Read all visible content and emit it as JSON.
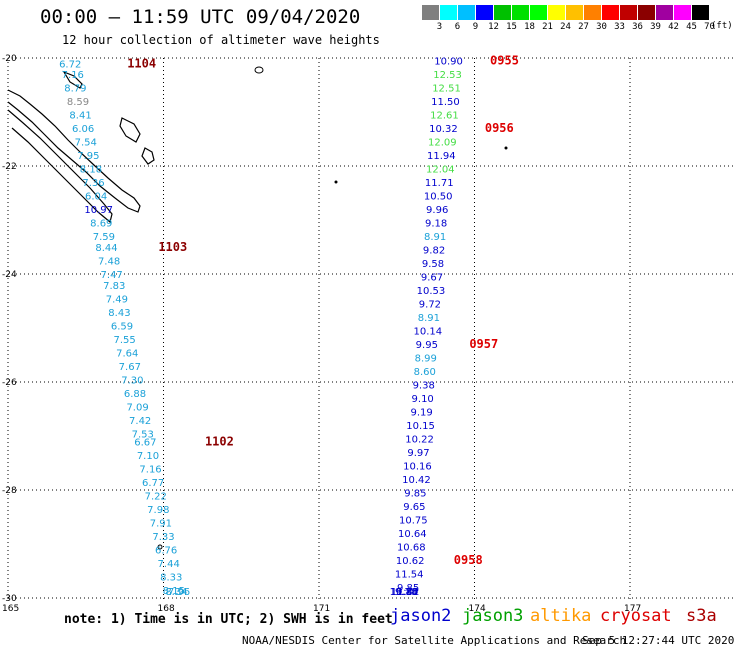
{
  "header": {
    "title": "00:00 – 11:59 UTC 09/04/2020",
    "subtitle": "12 hour collection of altimeter wave heights"
  },
  "legend": {
    "bins": [
      {
        "label": "3",
        "color": "#7f7f7f"
      },
      {
        "label": "6",
        "color": "#00ffff"
      },
      {
        "label": "9",
        "color": "#00bfff"
      },
      {
        "label": "12",
        "color": "#0000ff"
      },
      {
        "label": "15",
        "color": "#00c000"
      },
      {
        "label": "18",
        "color": "#00e000"
      },
      {
        "label": "21",
        "color": "#00ff00"
      },
      {
        "label": "24",
        "color": "#ffff00"
      },
      {
        "label": "27",
        "color": "#ffc000"
      },
      {
        "label": "30",
        "color": "#ff8000"
      },
      {
        "label": "33",
        "color": "#ff0000"
      },
      {
        "label": "36",
        "color": "#c00000"
      },
      {
        "label": "39",
        "color": "#8b0000"
      },
      {
        "label": "42",
        "color": "#a000a0"
      },
      {
        "label": "45",
        "color": "#ff00ff"
      },
      {
        "label": "70",
        "color": "#000000"
      }
    ],
    "unit": "(ft)"
  },
  "axes": {
    "lat_labels": [
      "-20",
      "-22",
      "-24",
      "-26",
      "-28",
      "-30"
    ],
    "lon_labels": [
      "165",
      "168",
      "171",
      "174",
      "177"
    ]
  },
  "tracks": [
    {
      "name": "west-track",
      "color": "#1ba1d8",
      "points": [
        {
          "lat": -20.1,
          "lon": 166.2,
          "v": "6.72"
        },
        {
          "lat": -20.3,
          "lon": 166.25,
          "v": "7.16"
        },
        {
          "lat": -20.55,
          "lon": 166.3,
          "v": "8.79"
        },
        {
          "lat": -20.8,
          "lon": 166.35,
          "v": "8.59",
          "color": "#888888"
        },
        {
          "lat": -21.05,
          "lon": 166.4,
          "v": "8.41"
        },
        {
          "lat": -21.3,
          "lon": 166.45,
          "v": "6.06"
        },
        {
          "lat": -21.55,
          "lon": 166.5,
          "v": "7.54"
        },
        {
          "lat": -21.8,
          "lon": 166.55,
          "v": "7.95"
        },
        {
          "lat": -22.05,
          "lon": 166.6,
          "v": "8.18"
        },
        {
          "lat": -22.3,
          "lon": 166.65,
          "v": "7.36"
        },
        {
          "lat": -22.55,
          "lon": 166.7,
          "v": "6.04"
        },
        {
          "lat": -22.8,
          "lon": 166.75,
          "v": "10.97",
          "color": "#0000cc"
        },
        {
          "lat": -23.05,
          "lon": 166.8,
          "v": "8.69"
        },
        {
          "lat": -23.3,
          "lon": 166.85,
          "v": "7.59"
        },
        {
          "lat": -23.5,
          "lon": 166.9,
          "v": "8.44"
        },
        {
          "lat": -23.75,
          "lon": 166.95,
          "v": "7.48"
        },
        {
          "lat": -24.0,
          "lon": 167.0,
          "v": "7.47"
        },
        {
          "lat": -24.2,
          "lon": 167.05,
          "v": "7.83"
        },
        {
          "lat": -24.45,
          "lon": 167.1,
          "v": "7.49"
        },
        {
          "lat": -24.7,
          "lon": 167.15,
          "v": "8.43"
        },
        {
          "lat": -24.95,
          "lon": 167.2,
          "v": "6.59"
        },
        {
          "lat": -25.2,
          "lon": 167.25,
          "v": "7.55"
        },
        {
          "lat": -25.45,
          "lon": 167.3,
          "v": "7.64"
        },
        {
          "lat": -25.7,
          "lon": 167.35,
          "v": "7.67"
        },
        {
          "lat": -25.95,
          "lon": 167.4,
          "v": "7.30"
        },
        {
          "lat": -26.2,
          "lon": 167.45,
          "v": "6.88"
        },
        {
          "lat": -26.45,
          "lon": 167.5,
          "v": "7.09"
        },
        {
          "lat": -26.7,
          "lon": 167.55,
          "v": "7.42"
        },
        {
          "lat": -26.95,
          "lon": 167.6,
          "v": "7.53"
        },
        {
          "lat": -27.1,
          "lon": 167.65,
          "v": "6.67"
        },
        {
          "lat": -27.35,
          "lon": 167.7,
          "v": "7.10"
        },
        {
          "lat": -27.6,
          "lon": 167.75,
          "v": "7.16"
        },
        {
          "lat": -27.85,
          "lon": 167.8,
          "v": "6.77"
        },
        {
          "lat": -28.1,
          "lon": 167.85,
          "v": "7.22"
        },
        {
          "lat": -28.35,
          "lon": 167.9,
          "v": "7.98"
        },
        {
          "lat": -28.6,
          "lon": 167.95,
          "v": "7.91"
        },
        {
          "lat": -28.85,
          "lon": 168.0,
          "v": "7.33"
        },
        {
          "lat": -29.1,
          "lon": 168.05,
          "v": "6.76"
        },
        {
          "lat": -29.35,
          "lon": 168.1,
          "v": "7.44"
        },
        {
          "lat": -29.6,
          "lon": 168.15,
          "v": "8.33"
        },
        {
          "lat": -29.85,
          "lon": 168.2,
          "v": "8.15"
        },
        {
          "lat": -30.1,
          "lon": 168.25,
          "v": "8.34"
        },
        {
          "lat": -30.35,
          "lon": 168.3,
          "v": "7.96"
        }
      ]
    },
    {
      "name": "east-track",
      "color": "#0000cc",
      "points": [
        {
          "lat": -20.05,
          "lon": 173.5,
          "v": "10.90"
        },
        {
          "lat": -20.3,
          "lon": 173.48,
          "v": "12.53",
          "color": "#44dd44"
        },
        {
          "lat": -20.55,
          "lon": 173.46,
          "v": "12.51",
          "color": "#44dd44"
        },
        {
          "lat": -20.8,
          "lon": 173.44,
          "v": "11.50"
        },
        {
          "lat": -21.05,
          "lon": 173.42,
          "v": "12.61",
          "color": "#44dd44"
        },
        {
          "lat": -21.3,
          "lon": 173.4,
          "v": "10.32"
        },
        {
          "lat": -21.55,
          "lon": 173.38,
          "v": "12.09",
          "color": "#44dd44"
        },
        {
          "lat": -21.8,
          "lon": 173.36,
          "v": "11.94"
        },
        {
          "lat": -22.05,
          "lon": 173.34,
          "v": "12.04",
          "color": "#44dd44"
        },
        {
          "lat": -22.3,
          "lon": 173.32,
          "v": "11.71"
        },
        {
          "lat": -22.55,
          "lon": 173.3,
          "v": "10.50"
        },
        {
          "lat": -22.8,
          "lon": 173.28,
          "v": "9.96"
        },
        {
          "lat": -23.05,
          "lon": 173.26,
          "v": "9.18"
        },
        {
          "lat": -23.3,
          "lon": 173.24,
          "v": "8.91",
          "color": "#1ba1d8"
        },
        {
          "lat": -23.55,
          "lon": 173.22,
          "v": "9.82"
        },
        {
          "lat": -23.8,
          "lon": 173.2,
          "v": "9.58"
        },
        {
          "lat": -24.05,
          "lon": 173.18,
          "v": "9.67"
        },
        {
          "lat": -24.3,
          "lon": 173.16,
          "v": "10.53"
        },
        {
          "lat": -24.55,
          "lon": 173.14,
          "v": "9.72"
        },
        {
          "lat": -24.8,
          "lon": 173.12,
          "v": "8.91",
          "color": "#1ba1d8"
        },
        {
          "lat": -25.05,
          "lon": 173.1,
          "v": "10.14"
        },
        {
          "lat": -25.3,
          "lon": 173.08,
          "v": "9.95"
        },
        {
          "lat": -25.55,
          "lon": 173.06,
          "v": "8.99",
          "color": "#1ba1d8"
        },
        {
          "lat": -25.8,
          "lon": 173.04,
          "v": "8.60",
          "color": "#1ba1d8"
        },
        {
          "lat": -26.05,
          "lon": 173.02,
          "v": "9.38"
        },
        {
          "lat": -26.3,
          "lon": 173.0,
          "v": "9.10"
        },
        {
          "lat": -26.55,
          "lon": 172.98,
          "v": "9.19"
        },
        {
          "lat": -26.8,
          "lon": 172.96,
          "v": "10.15"
        },
        {
          "lat": -27.05,
          "lon": 172.94,
          "v": "10.22"
        },
        {
          "lat": -27.3,
          "lon": 172.92,
          "v": "9.97"
        },
        {
          "lat": -27.55,
          "lon": 172.9,
          "v": "10.16"
        },
        {
          "lat": -27.8,
          "lon": 172.88,
          "v": "10.42"
        },
        {
          "lat": -28.05,
          "lon": 172.86,
          "v": "9.85"
        },
        {
          "lat": -28.3,
          "lon": 172.84,
          "v": "9.65"
        },
        {
          "lat": -28.55,
          "lon": 172.82,
          "v": "10.75"
        },
        {
          "lat": -28.8,
          "lon": 172.8,
          "v": "10.64"
        },
        {
          "lat": -29.05,
          "lon": 172.78,
          "v": "10.68"
        },
        {
          "lat": -29.3,
          "lon": 172.76,
          "v": "10.62"
        },
        {
          "lat": -29.55,
          "lon": 172.74,
          "v": "11.54"
        },
        {
          "lat": -29.8,
          "lon": 172.72,
          "v": "9.85"
        },
        {
          "lat": -30.05,
          "lon": 172.7,
          "v": "9.80"
        },
        {
          "lat": -30.3,
          "lon": 172.68,
          "v": "9.78"
        },
        {
          "lat": -30.55,
          "lon": 172.66,
          "v": "11.42"
        },
        {
          "lat": -30.8,
          "lon": 172.64,
          "v": "10.14"
        }
      ]
    }
  ],
  "times": [
    {
      "label": "1104",
      "lat": -20.1,
      "lon": 167.3,
      "color": "#8b0000"
    },
    {
      "label": "1103",
      "lat": -23.5,
      "lon": 167.9,
      "color": "#8b0000"
    },
    {
      "label": "1102",
      "lat": -27.1,
      "lon": 168.8,
      "color": "#8b0000"
    },
    {
      "label": "0955",
      "lat": -20.05,
      "lon": 174.3,
      "color": "#dd0000"
    },
    {
      "label": "0956",
      "lat": -21.3,
      "lon": 174.2,
      "color": "#dd0000"
    },
    {
      "label": "0957",
      "lat": -25.3,
      "lon": 173.9,
      "color": "#dd0000"
    },
    {
      "label": "0958",
      "lat": -29.3,
      "lon": 173.6,
      "color": "#dd0000"
    }
  ],
  "note": "note: 1) Time is in UTC; 2) SWH is in feet",
  "satellites": [
    {
      "name": "jason2",
      "color": "#0000cc"
    },
    {
      "name": "jason3",
      "color": "#00a000"
    },
    {
      "name": "altika",
      "color": "#ff9900"
    },
    {
      "name": "cryosat",
      "color": "#dd0000"
    },
    {
      "name": "s3a",
      "color": "#aa0000"
    }
  ],
  "credit": "NOAA/NESDIS Center for Satellite Applications and Research",
  "timestamp": "Sep  5 12:27:44 UTC 2020"
}
